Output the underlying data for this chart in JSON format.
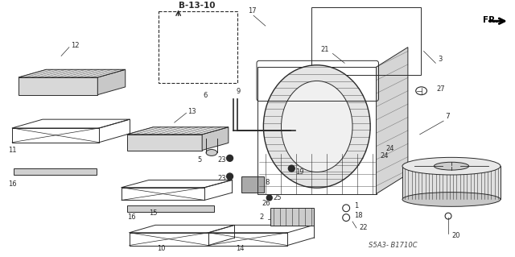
{
  "bg": "#f5f5f5",
  "lc": "#2a2a2a",
  "fig_width": 6.4,
  "fig_height": 3.19,
  "dpi": 100,
  "ref_code": "S5A3- B1710C",
  "ref_label": "B-13-10"
}
